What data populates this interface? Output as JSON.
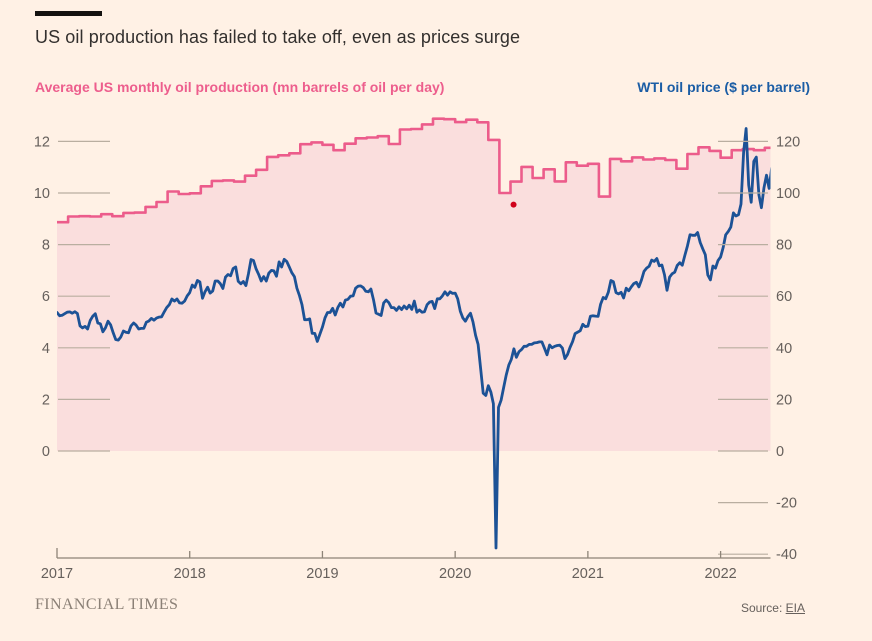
{
  "header": {
    "title": "US oil production has failed to take off, even as prices surge"
  },
  "legend": {
    "production_label": "Average US monthly oil production (mn barrels of oil per day)",
    "price_label": "WTI oil price ($ per barrel)"
  },
  "footer": {
    "brand": "FINANCIAL TIMES",
    "source_prefix": "Source: ",
    "source_link": "EIA"
  },
  "colors": {
    "background": "#fff1e5",
    "production_pink": "#ec5c8b",
    "production_fill": "#fadedd",
    "price_blue": "#1c5296",
    "axis_text": "#66605c",
    "tick_line": "#b9aea0",
    "axis_line": "#8e8478",
    "annotation_red": "#d0021b"
  },
  "chart_data": {
    "type": "line",
    "title": "US oil production has failed to take off, even as prices surge",
    "left_axis": {
      "label": "Average US monthly oil production (mn barrels of oil per day)",
      "ticks": [
        0,
        2,
        4,
        6,
        8,
        10,
        12
      ],
      "range": [
        0,
        13
      ]
    },
    "right_axis": {
      "label": "WTI oil price ($ per barrel)",
      "ticks": [
        -40,
        -20,
        0,
        20,
        40,
        60,
        80,
        100,
        120
      ],
      "range": [
        -42,
        130
      ]
    },
    "x_axis": {
      "ticks": [
        2017,
        2018,
        2019,
        2020,
        2021,
        2022
      ],
      "range": [
        2017.0,
        2022.42
      ]
    },
    "grid": "short-ticks-only",
    "legend_position": "top",
    "annotation_dot": {
      "t": 2020.44,
      "value": 9.55
    },
    "series": [
      {
        "name": "Average US monthly oil production (mn barrels of oil per day)",
        "axis": "left",
        "style": "step-area",
        "t_start": 2017.0,
        "t_step": 0.0833333,
        "values": [
          8.87,
          9.09,
          9.1,
          9.09,
          9.18,
          9.1,
          9.23,
          9.24,
          9.46,
          9.65,
          10.06,
          9.96,
          9.99,
          10.26,
          10.47,
          10.49,
          10.44,
          10.67,
          10.9,
          11.4,
          11.46,
          11.54,
          11.89,
          11.96,
          11.87,
          11.66,
          11.91,
          12.12,
          12.15,
          12.2,
          11.9,
          12.46,
          12.48,
          12.66,
          12.88,
          12.86,
          12.75,
          12.84,
          12.74,
          12.06,
          10.0,
          10.44,
          11.01,
          10.58,
          10.92,
          10.45,
          11.19,
          11.06,
          11.13,
          9.86,
          11.32,
          11.23,
          11.38,
          11.3,
          11.34,
          11.28,
          10.94,
          11.51,
          11.77,
          11.63,
          11.37,
          11.66,
          11.7,
          11.66,
          11.75
        ]
      },
      {
        "name": "WTI oil price ($ per barrel)",
        "axis": "right",
        "style": "line",
        "t_start": 2017.0,
        "t_step": 0.0192308,
        "values": [
          53.7,
          52.4,
          52.6,
          53.2,
          53.8,
          53.9,
          53.4,
          54.0,
          53.3,
          48.5,
          47.7,
          48.3,
          47.3,
          50.6,
          52.2,
          53.2,
          49.6,
          49.3,
          46.2,
          47.8,
          50.3,
          48.9,
          45.8,
          43.2,
          43.0,
          44.2,
          46.5,
          46.0,
          45.8,
          48.5,
          49.6,
          48.8,
          47.3,
          47.5,
          47.5,
          49.9,
          50.4,
          51.4,
          50.7,
          51.5,
          51.9,
          52.0,
          53.9,
          55.6,
          56.7,
          58.9,
          58.1,
          58.9,
          57.4,
          57.3,
          58.1,
          60.1,
          61.4,
          64.3,
          63.4,
          66.1,
          65.5,
          59.2,
          61.7,
          63.5,
          61.2,
          62.0,
          65.9,
          65.9,
          64.9,
          63.0,
          67.4,
          68.4,
          67.9,
          70.7,
          71.3,
          65.8,
          64.8,
          65.7,
          64.1,
          68.6,
          74.2,
          73.8,
          70.6,
          68.5,
          65.9,
          67.6,
          65.9,
          68.9,
          70.0,
          69.8,
          67.7,
          73.3,
          71.3,
          74.3,
          73.5,
          71.3,
          69.1,
          67.6,
          63.1,
          60.2,
          56.7,
          50.9,
          50.9,
          51.2,
          45.6,
          45.6,
          42.5,
          45.3,
          48.0,
          51.6,
          53.7,
          53.7,
          55.3,
          52.7,
          55.6,
          57.3,
          55.8,
          58.5,
          58.8,
          60.0,
          60.1,
          63.1,
          63.9,
          64.0,
          63.3,
          61.9,
          61.7,
          62.8,
          58.6,
          53.5,
          53.0,
          52.5,
          57.4,
          58.5,
          57.5,
          55.6,
          55.6,
          54.5,
          55.9,
          54.8,
          56.2,
          55.1,
          56.5,
          54.9,
          58.1,
          53.8,
          54.7,
          53.8,
          54.0,
          56.7,
          57.7,
          58.0,
          55.2,
          59.0,
          59.0,
          60.1,
          61.7,
          60.4,
          61.7,
          61.1,
          61.2,
          59.0,
          54.2,
          51.6,
          50.3,
          52.1,
          53.4,
          50.0,
          44.8,
          41.3,
          31.7,
          22.4,
          21.5,
          25.3,
          22.8,
          18.3,
          -37.6,
          16.9,
          19.7,
          24.7,
          29.4,
          33.3,
          35.5,
          39.6,
          36.3,
          38.5,
          39.3,
          40.6,
          40.6,
          41.3,
          41.3,
          41.9,
          42.0,
          42.3,
          42.3,
          39.8,
          37.3,
          41.1,
          40.0,
          40.6,
          40.9,
          41.0,
          39.9,
          35.8,
          37.4,
          40.1,
          42.4,
          45.5,
          46.1,
          46.6,
          49.1,
          48.2,
          48.4,
          52.2,
          52.4,
          52.3,
          52.2,
          56.9,
          59.5,
          59.0,
          61.5,
          66.1,
          65.6,
          61.4,
          60.9,
          61.5,
          59.3,
          63.1,
          62.1,
          63.6,
          64.9,
          65.4,
          63.6,
          66.3,
          69.6,
          70.9,
          71.6,
          74.0,
          73.5,
          74.6,
          71.8,
          72.1,
          68.3,
          62.3,
          67.4,
          68.7,
          69.3,
          71.9,
          73.0,
          72.0,
          75.9,
          79.4,
          83.8,
          83.6,
          83.6,
          84.7,
          80.8,
          78.4,
          76.1,
          68.2,
          66.3,
          71.7,
          70.9,
          73.8,
          75.2,
          78.9,
          83.8,
          85.1,
          86.8,
          92.3,
          91.1,
          91.6,
          95.7,
          115.7,
          125.0,
          103.1,
          96.4,
          112.3,
          113.9,
          99.3,
          94.3,
          102.1,
          106.9,
          101.8,
          109.5,
          114.9
        ]
      }
    ]
  }
}
